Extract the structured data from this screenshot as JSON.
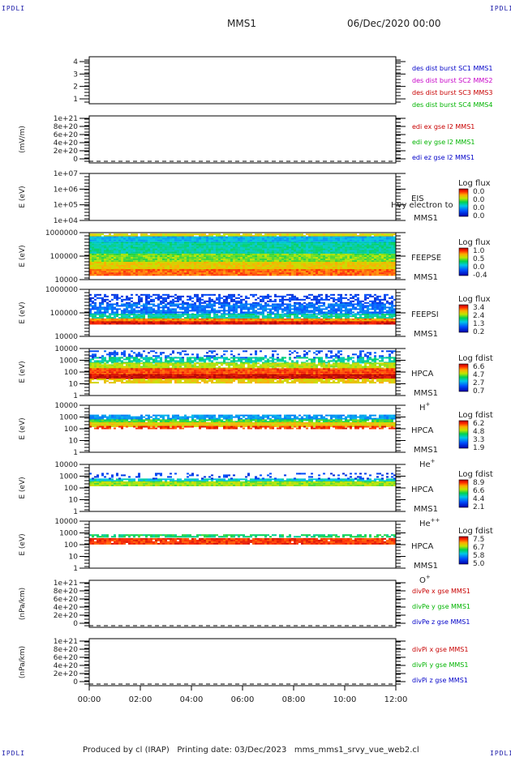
{
  "page": {
    "corner_label": "IPDLI",
    "title": "MMS1",
    "date_time": "06/Dec/2020 00:00",
    "footer": "Produced by cl (IRAP)   Printing date: 03/Dec/2023   mms_mms1_srvy_vue_web2.cl"
  },
  "chart_data": [
    {
      "id": "p1",
      "type": "line",
      "ylabel": "",
      "yticks": [
        "4",
        "3",
        "2",
        "1"
      ],
      "ylim": [
        0.6,
        4.4
      ],
      "legend": [
        {
          "text": "des dist burst SC1 MMS1",
          "color": "#0000c8"
        },
        {
          "text": "des dist burst SC2 MMS2",
          "color": "#c800c8"
        },
        {
          "text": "des dist burst SC3 MMS3",
          "color": "#c80000"
        },
        {
          "text": "des dist burst SC4 MMS4",
          "color": "#00b400"
        }
      ]
    },
    {
      "id": "p2",
      "type": "line",
      "ylabel": "(mV/m)",
      "yticks": [
        "1e+21",
        "8e+20",
        "6e+20",
        "4e+20",
        "2e+20",
        "0"
      ],
      "legend": [
        {
          "text": "edi ex gse l2 MMS1",
          "color": "#c80000"
        },
        {
          "text": "edi ey gse l2 MMS1",
          "color": "#00b400"
        },
        {
          "text": "edi ez gse l2 MMS1",
          "color": "#0000c8"
        }
      ]
    },
    {
      "id": "p3",
      "type": "heatmap",
      "ylabel": "E (eV)",
      "yticks": [
        "1e+07",
        "1e+06",
        "1e+05",
        "1e+04"
      ],
      "instrument": "EIS",
      "spacecraft": "MMS1",
      "overlay": "Hvy electron to",
      "cbar_title": "Log flux",
      "cbar_ticks": [
        "0.0",
        "0.0",
        "0.0",
        "0.0"
      ]
    },
    {
      "id": "p4",
      "type": "heatmap",
      "ylabel": "E (eV)",
      "yticks": [
        "1000000",
        "100000",
        "10000"
      ],
      "instrument": "FEEPSE",
      "spacecraft": "MMS1",
      "cbar_title": "Log flux",
      "cbar_ticks": [
        "1.0",
        "0.5",
        "0.0",
        "-0.4"
      ]
    },
    {
      "id": "p5",
      "type": "heatmap",
      "ylabel": "E (eV)",
      "yticks": [
        "1000000",
        "100000",
        "10000"
      ],
      "instrument": "FEEPSI",
      "spacecraft": "MMS1",
      "cbar_title": "Log flux",
      "cbar_ticks": [
        "3.4",
        "2.4",
        "1.3",
        "0.2"
      ]
    },
    {
      "id": "p6",
      "type": "heatmap",
      "ylabel": "E (eV)",
      "yticks": [
        "10000",
        "1000",
        "100",
        "10",
        "1"
      ],
      "instrument": "HPCA",
      "spacecraft": "MMS1",
      "species": "H",
      "charge": "+",
      "cbar_title": "Log fdist",
      "cbar_ticks": [
        "6.6",
        "4.7",
        "2.7",
        "0.7"
      ]
    },
    {
      "id": "p7",
      "type": "heatmap",
      "ylabel": "E (eV)",
      "yticks": [
        "10000",
        "1000",
        "100",
        "10",
        "1"
      ],
      "instrument": "HPCA",
      "spacecraft": "MMS1",
      "species": "He",
      "charge": "+",
      "cbar_title": "Log fdist",
      "cbar_ticks": [
        "6.2",
        "4.8",
        "3.3",
        "1.9"
      ]
    },
    {
      "id": "p8",
      "type": "heatmap",
      "ylabel": "E (eV)",
      "yticks": [
        "10000",
        "1000",
        "100",
        "10",
        "1"
      ],
      "instrument": "HPCA",
      "spacecraft": "MMS1",
      "species": "He",
      "charge": "++",
      "cbar_title": "Log fdist",
      "cbar_ticks": [
        "8.9",
        "6.6",
        "4.4",
        "2.1"
      ]
    },
    {
      "id": "p9",
      "type": "heatmap",
      "ylabel": "E (eV)",
      "yticks": [
        "10000",
        "1000",
        "100",
        "10",
        "1"
      ],
      "instrument": "HPCA",
      "spacecraft": "MMS1",
      "species": "O",
      "charge": "+",
      "cbar_title": "Log fdist",
      "cbar_ticks": [
        "7.5",
        "6.7",
        "5.8",
        "5.0"
      ]
    },
    {
      "id": "p10",
      "type": "line",
      "ylabel": "(nPa/km)",
      "yticks": [
        "1e+21",
        "8e+20",
        "6e+20",
        "4e+20",
        "2e+20",
        "0"
      ],
      "legend": [
        {
          "text": "divPe x gse MMS1",
          "color": "#c80000"
        },
        {
          "text": "divPe y gse MMS1",
          "color": "#00b400"
        },
        {
          "text": "divPe z gse MMS1",
          "color": "#0000c8"
        }
      ]
    },
    {
      "id": "p11",
      "type": "line",
      "ylabel": "(nPa/km)",
      "yticks": [
        "1e+21",
        "8e+20",
        "6e+20",
        "4e+20",
        "2e+20",
        "0"
      ],
      "legend": [
        {
          "text": "divPi x gse MMS1",
          "color": "#c80000"
        },
        {
          "text": "divPi y gse MMS1",
          "color": "#00b400"
        },
        {
          "text": "divPi z gse MMS1",
          "color": "#0000c8"
        }
      ]
    }
  ],
  "x_axis": {
    "ticks": [
      "00:00",
      "02:00",
      "04:00",
      "06:00",
      "08:00",
      "10:00",
      "12:00"
    ]
  }
}
